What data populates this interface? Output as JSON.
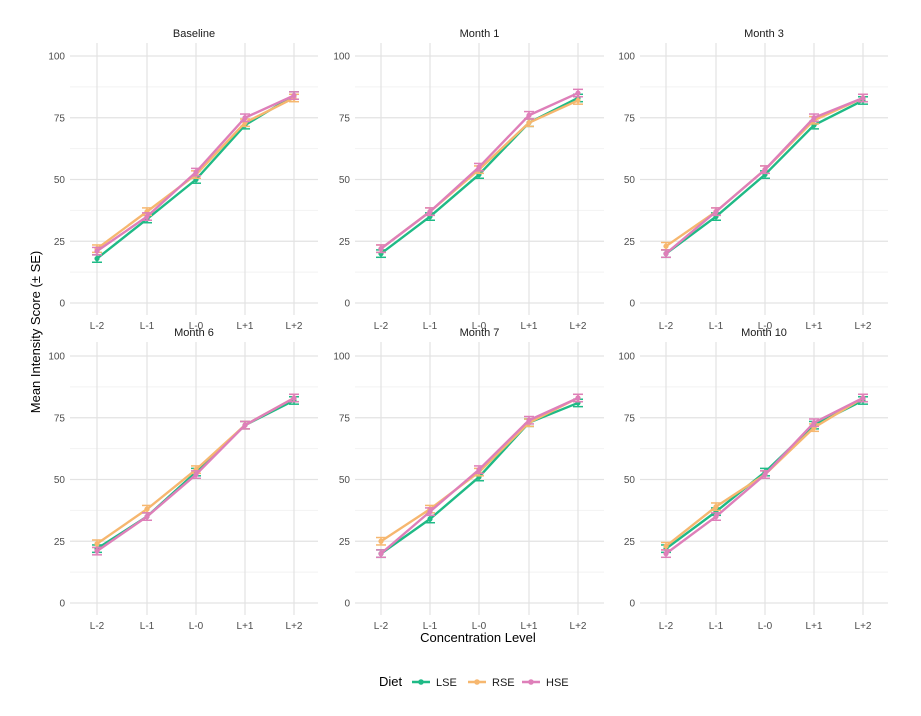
{
  "chart_data": {
    "type": "line",
    "xlabel": "Concentration Level",
    "ylabel": "Mean Intensity Score (± SE)",
    "categories": [
      "L-2",
      "L-1",
      "L-0",
      "L+1",
      "L+2"
    ],
    "ylim": [
      0,
      100
    ],
    "yticks": [
      0,
      25,
      50,
      75,
      100
    ],
    "legend": {
      "title": "Diet",
      "items": [
        {
          "name": "LSE",
          "color": "#1fba86"
        },
        {
          "name": "RSE",
          "color": "#f6b76f"
        },
        {
          "name": "HSE",
          "color": "#de7fb9"
        }
      ]
    },
    "panels": [
      {
        "title": "Baseline",
        "series": [
          {
            "name": "LSE",
            "values": [
              18,
              34,
              50,
              72,
              84
            ],
            "se": [
              1.5,
              1.5,
              1.5,
              1.5,
              1.5
            ]
          },
          {
            "name": "RSE",
            "values": [
              22,
              37,
              52,
              73,
              83
            ],
            "se": [
              1.5,
              1.5,
              1.5,
              1.5,
              1.5
            ]
          },
          {
            "name": "HSE",
            "values": [
              21,
              35,
              53,
              75,
              84
            ],
            "se": [
              1.5,
              1.5,
              1.5,
              1.5,
              1.5
            ]
          }
        ]
      },
      {
        "title": "Month 1",
        "series": [
          {
            "name": "LSE",
            "values": [
              20,
              35,
              52,
              73,
              83
            ],
            "se": [
              1.5,
              1.5,
              1.5,
              1.5,
              1.5
            ]
          },
          {
            "name": "RSE",
            "values": [
              22,
              37,
              54,
              73,
              82
            ],
            "se": [
              1.5,
              1.5,
              1.5,
              1.5,
              1.5
            ]
          },
          {
            "name": "HSE",
            "values": [
              22,
              37,
              55,
              76,
              85
            ],
            "se": [
              1.5,
              1.5,
              1.5,
              1.5,
              1.5
            ]
          }
        ]
      },
      {
        "title": "Month 3",
        "series": [
          {
            "name": "LSE",
            "values": [
              20,
              35,
              52,
              72,
              82
            ],
            "se": [
              1.5,
              1.5,
              1.5,
              1.5,
              1.5
            ]
          },
          {
            "name": "RSE",
            "values": [
              23,
              37,
              54,
              74,
              83
            ],
            "se": [
              1.5,
              1.5,
              1.5,
              1.5,
              1.5
            ]
          },
          {
            "name": "HSE",
            "values": [
              20,
              37,
              54,
              75,
              83
            ],
            "se": [
              1.5,
              1.5,
              1.5,
              1.5,
              1.5
            ]
          }
        ]
      },
      {
        "title": "Month 6",
        "series": [
          {
            "name": "LSE",
            "values": [
              22,
              35,
              53,
              72,
              82
            ],
            "se": [
              1.5,
              1.5,
              1.5,
              1.5,
              1.5
            ]
          },
          {
            "name": "RSE",
            "values": [
              24,
              38,
              54,
              72,
              83
            ],
            "se": [
              1.5,
              1.5,
              1.5,
              1.5,
              1.5
            ]
          },
          {
            "name": "HSE",
            "values": [
              21,
              35,
              52,
              72,
              83
            ],
            "se": [
              1.5,
              1.5,
              1.5,
              1.5,
              1.5
            ]
          }
        ]
      },
      {
        "title": "Month 7",
        "series": [
          {
            "name": "LSE",
            "values": [
              20,
              34,
              51,
              73,
              81
            ],
            "se": [
              1.5,
              1.5,
              1.5,
              1.5,
              1.5
            ]
          },
          {
            "name": "RSE",
            "values": [
              25,
              38,
              53,
              73,
              83
            ],
            "se": [
              1.5,
              1.5,
              1.5,
              1.5,
              1.5
            ]
          },
          {
            "name": "HSE",
            "values": [
              20,
              37,
              54,
              74,
              83
            ],
            "se": [
              1.5,
              1.5,
              1.5,
              1.5,
              1.5
            ]
          }
        ]
      },
      {
        "title": "Month 10",
        "series": [
          {
            "name": "LSE",
            "values": [
              22,
              37,
              53,
              72,
              82
            ],
            "se": [
              1.5,
              1.5,
              1.5,
              1.5,
              1.5
            ]
          },
          {
            "name": "RSE",
            "values": [
              23,
              39,
              52,
              71,
              83
            ],
            "se": [
              1.5,
              1.5,
              1.5,
              1.5,
              1.5
            ]
          },
          {
            "name": "HSE",
            "values": [
              20,
              35,
              52,
              73,
              83
            ],
            "se": [
              1.5,
              1.5,
              1.5,
              1.5,
              1.5
            ]
          }
        ]
      }
    ]
  }
}
